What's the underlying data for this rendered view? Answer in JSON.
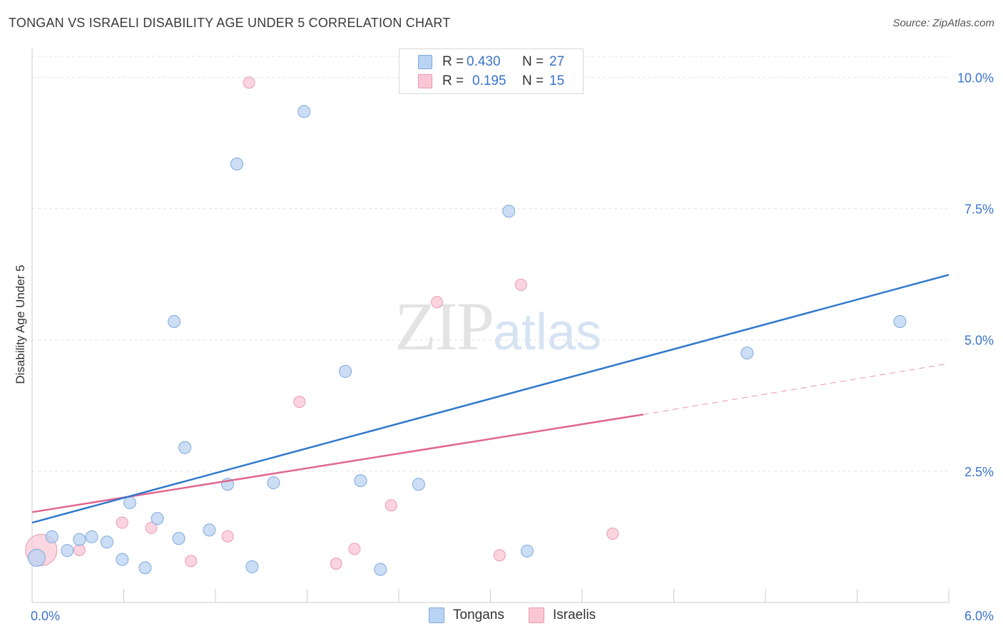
{
  "header": {
    "title": "TONGAN VS ISRAELI DISABILITY AGE UNDER 5 CORRELATION CHART",
    "source": "Source: ZipAtlas.com"
  },
  "watermark": {
    "zip": "ZIP",
    "atlas": "atlas"
  },
  "legend": {
    "rows": [
      {
        "r_label": "R =",
        "r_value": "0.430",
        "n_label": "N =",
        "n_value": "27"
      },
      {
        "r_label": "R =",
        "r_value": "0.195",
        "n_label": "N =",
        "n_value": "15"
      }
    ]
  },
  "bottom_legend": {
    "tongans": "Tongans",
    "israelis": "Israelis"
  },
  "colors": {
    "tongans_fill": "#b9d3f2",
    "tongans_stroke": "#7fa9dd",
    "tongans_line": "#2f78cc",
    "israelis_fill": "#f9c6d5",
    "israelis_stroke": "#e99ab2",
    "israelis_line": "#e06690",
    "grid": "#e4e4e4",
    "axis": "#cccccc",
    "tick_label": "#3a74c8"
  },
  "chart_data": {
    "type": "scatter",
    "title": "TONGAN VS ISRAELI DISABILITY AGE UNDER 5 CORRELATION CHART",
    "xlabel": "",
    "ylabel": "Disability Age Under 5",
    "xlim": [
      0,
      6
    ],
    "ylim": [
      0,
      10.4
    ],
    "x_tick_labels": [
      "0.0%",
      "6.0%"
    ],
    "y_ticks": [
      2.5,
      5.0,
      7.5,
      10.0
    ],
    "y_tick_labels": [
      "2.5%",
      "5.0%",
      "7.5%",
      "10.0%"
    ],
    "grid": true,
    "series": [
      {
        "name": "Tongans",
        "R": 0.43,
        "N": 27,
        "points": [
          [
            0.03,
            0.85
          ],
          [
            0.13,
            1.25
          ],
          [
            0.23,
            0.99
          ],
          [
            0.31,
            1.2
          ],
          [
            0.39,
            1.25
          ],
          [
            0.49,
            1.15
          ],
          [
            0.59,
            0.82
          ],
          [
            0.64,
            1.9
          ],
          [
            0.74,
            0.66
          ],
          [
            0.82,
            1.6
          ],
          [
            0.93,
            5.35
          ],
          [
            0.96,
            1.22
          ],
          [
            1.0,
            2.95
          ],
          [
            1.16,
            1.38
          ],
          [
            1.28,
            2.25
          ],
          [
            1.34,
            8.35
          ],
          [
            1.44,
            0.68
          ],
          [
            1.58,
            2.28
          ],
          [
            1.78,
            9.35
          ],
          [
            2.05,
            4.4
          ],
          [
            2.15,
            2.32
          ],
          [
            2.28,
            0.63
          ],
          [
            2.53,
            2.25
          ],
          [
            3.12,
            7.45
          ],
          [
            3.24,
            0.98
          ],
          [
            4.68,
            4.75
          ],
          [
            5.68,
            5.35
          ]
        ],
        "trend": {
          "x": [
            0.0,
            6.0
          ],
          "y": [
            1.52,
            6.24
          ]
        }
      },
      {
        "name": "Israelis",
        "R": 0.195,
        "N": 15,
        "points": [
          [
            0.06,
            1.0
          ],
          [
            0.31,
            1.0
          ],
          [
            0.59,
            1.52
          ],
          [
            0.78,
            1.42
          ],
          [
            1.04,
            0.79
          ],
          [
            1.28,
            1.26
          ],
          [
            1.42,
            9.9
          ],
          [
            1.75,
            3.82
          ],
          [
            1.99,
            0.74
          ],
          [
            2.11,
            1.02
          ],
          [
            2.35,
            1.85
          ],
          [
            2.65,
            5.72
          ],
          [
            3.06,
            0.9
          ],
          [
            3.2,
            6.05
          ],
          [
            3.8,
            1.31
          ]
        ],
        "trend": {
          "x": [
            0.0,
            4.0
          ],
          "y": [
            1.72,
            3.58
          ]
        },
        "trend_extended": {
          "x": [
            4.0,
            6.0
          ],
          "y": [
            3.58,
            4.55
          ]
        }
      }
    ]
  }
}
